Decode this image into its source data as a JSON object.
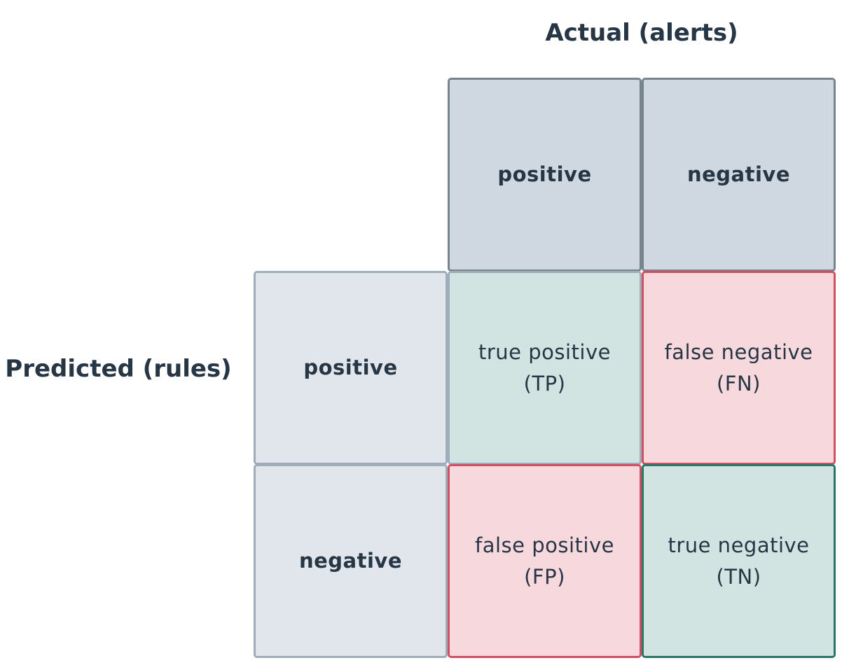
{
  "titles": {
    "actual": "Actual (alerts)",
    "predicted": "Predicted (rules)"
  },
  "columns": {
    "positive": "positive",
    "negative": "negative"
  },
  "rows": {
    "positive": "positive",
    "negative": "negative"
  },
  "cells": {
    "tp": {
      "label": "true positive",
      "abbr": "(TP)"
    },
    "fn": {
      "label": "false negative",
      "abbr": "(FN)"
    },
    "fp": {
      "label": "false positive",
      "abbr": "(FP)"
    },
    "tn": {
      "label": "true negative",
      "abbr": "(TN)"
    }
  },
  "colors": {
    "text": "#263645",
    "column_header_fill": "#cfd8e0",
    "row_header_fill": "#e1e6ed",
    "correct_fill": "#d1e4e1",
    "error_fill": "#f6d8dd",
    "error_border": "#d14f63",
    "true_negative_border": "#2b7566"
  }
}
